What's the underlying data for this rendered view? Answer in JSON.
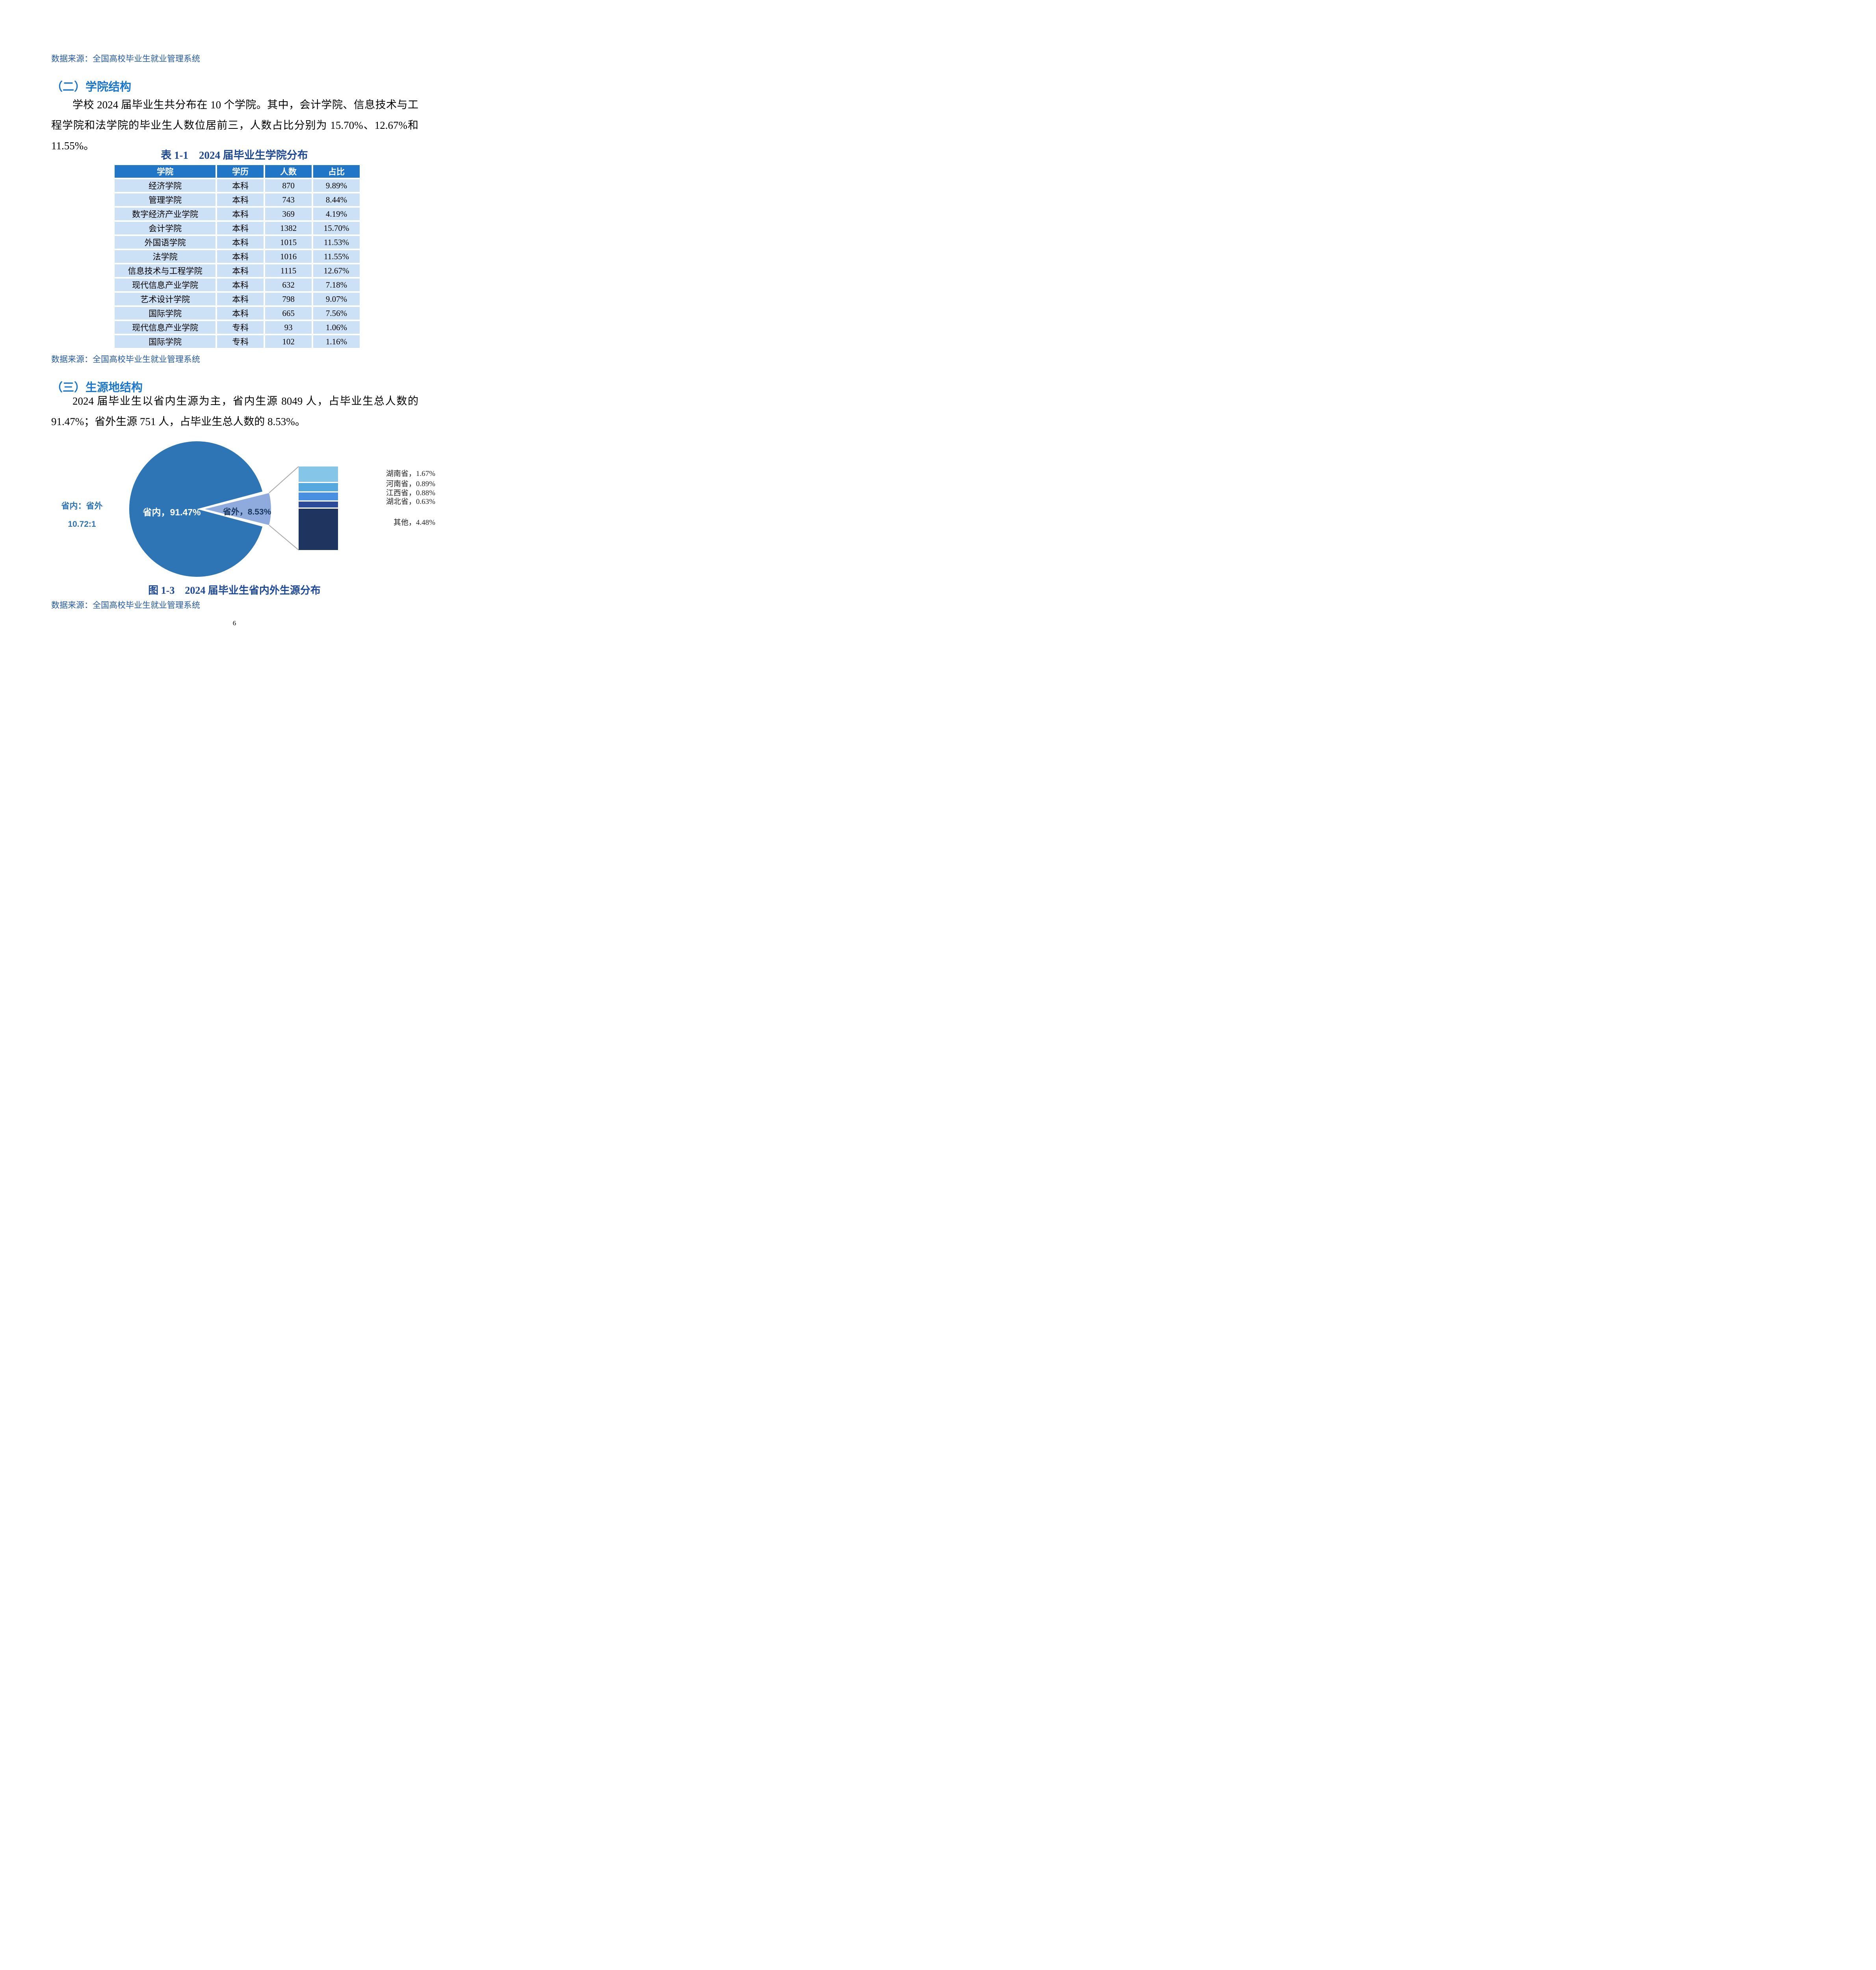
{
  "page": {
    "source_note": "数据来源：全国高校毕业生就业管理系统",
    "number": "6"
  },
  "section2": {
    "heading": "（二）学院结构",
    "paragraph": "学校 2024 届毕业生共分布在 10 个学院。其中，会计学院、信息技术与工程学院和法学院的毕业生人数位居前三，人数占比分别为 15.70%、12.67%和 11.55%。"
  },
  "table": {
    "title": "表 1-1　2024 届毕业生学院分布",
    "headers": [
      "学院",
      "学历",
      "人数",
      "占比"
    ],
    "rows": [
      [
        "经济学院",
        "本科",
        "870",
        "9.89%"
      ],
      [
        "管理学院",
        "本科",
        "743",
        "8.44%"
      ],
      [
        "数字经济产业学院",
        "本科",
        "369",
        "4.19%"
      ],
      [
        "会计学院",
        "本科",
        "1382",
        "15.70%"
      ],
      [
        "外国语学院",
        "本科",
        "1015",
        "11.53%"
      ],
      [
        "法学院",
        "本科",
        "1016",
        "11.55%"
      ],
      [
        "信息技术与工程学院",
        "本科",
        "1115",
        "12.67%"
      ],
      [
        "现代信息产业学院",
        "本科",
        "632",
        "7.18%"
      ],
      [
        "艺术设计学院",
        "本科",
        "798",
        "9.07%"
      ],
      [
        "国际学院",
        "本科",
        "665",
        "7.56%"
      ],
      [
        "现代信息产业学院",
        "专科",
        "93",
        "1.06%"
      ],
      [
        "国际学院",
        "专科",
        "102",
        "1.16%"
      ]
    ]
  },
  "section3": {
    "heading": "（三）生源地结构",
    "paragraph": "2024 届毕业生以省内生源为主，省内生源 8049 人，占毕业生总人数的 91.47%；省外生源 751 人，占毕业生总人数的 8.53%。"
  },
  "chart_data": {
    "type": "pie",
    "title": "图 1-3　2024 届毕业生省内外生源分布",
    "slices": [
      {
        "label": "省内",
        "value": 91.47
      },
      {
        "label": "省外",
        "value": 8.53
      }
    ],
    "pie_label_in": "省内，91.47%",
    "pie_label_out": "省外，8.53%",
    "ratio_label": "省内：省外",
    "ratio_value": "10.72:1",
    "legend_position": "right",
    "breakdown": {
      "categories": [
        "湖南省",
        "河南省",
        "江西省",
        "湖北省",
        "其他"
      ],
      "values": [
        1.67,
        0.89,
        0.88,
        0.63,
        4.48
      ],
      "labels": [
        "湖南省，1.67%",
        "河南省，0.89%",
        "江西省，0.88%",
        "湖北省，0.63%",
        "其他，4.48%"
      ],
      "colors": [
        "#85C5E8",
        "#55A9DE",
        "#4A90E0",
        "#2D4B9B",
        "#1F3560"
      ]
    },
    "colors": {
      "pie_main": "#2E75B6",
      "pie_exploded": "#8FAADC",
      "connector": "#A6A6A6"
    }
  },
  "figure": {
    "caption": "图 1-3　2024 届毕业生省内外生源分布"
  }
}
